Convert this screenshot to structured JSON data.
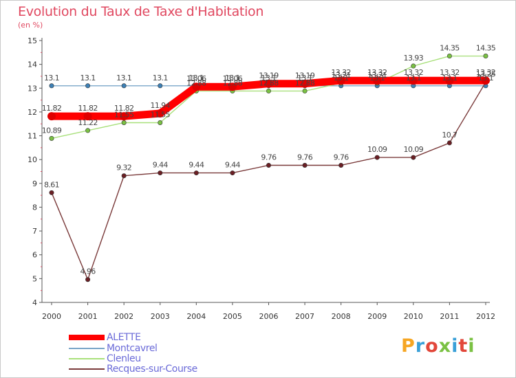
{
  "header": {
    "title": "Evolution du Taux de Taxe d'Habitation",
    "subtitle": "(en %)"
  },
  "logo": {
    "text": "Proxiti",
    "colors": [
      "#f6a623",
      "#3aa0d8",
      "#e2473a",
      "#7ac143",
      "#3aa0d8",
      "#e2473a",
      "#7ac143"
    ]
  },
  "chart_data": {
    "type": "line",
    "title": "Evolution du Taux de Taxe d'Habitation",
    "subtitle": "(en %)",
    "xlabel": "",
    "ylabel": "",
    "ylim": [
      4,
      15
    ],
    "yticks": [
      4,
      5,
      6,
      7,
      8,
      9,
      10,
      11,
      12,
      13,
      14,
      15
    ],
    "grid": false,
    "legend_position": "bottom-left",
    "categories": [
      "2000",
      "2001",
      "2002",
      "2003",
      "2004",
      "2005",
      "2006",
      "2007",
      "2008",
      "2009",
      "2010",
      "2011",
      "2012"
    ],
    "series": [
      {
        "name": "Montcavrel",
        "color": "#7aa6c8",
        "marker_color": "#3d80b5",
        "values": [
          13.1,
          13.1,
          13.1,
          13.1,
          13.1,
          13.1,
          13.1,
          13.1,
          13.1,
          13.1,
          13.1,
          13.1,
          13.1
        ],
        "labels": [
          "13.1",
          "13.1",
          "13.1",
          "13.1",
          "13.1",
          "13.1",
          "13.1",
          "13.1",
          "13.1",
          "13.1",
          "13.1",
          "13.1",
          "13.1"
        ]
      },
      {
        "name": "Clenleu",
        "color": "#a8e07a",
        "marker_color": "#7ac143",
        "values": [
          10.89,
          11.22,
          11.55,
          11.55,
          12.88,
          12.88,
          12.88,
          12.88,
          13.21,
          13.21,
          13.93,
          14.35,
          14.35
        ],
        "labels": [
          "10.89",
          "11.22",
          "11.55",
          "11.55",
          "12.88",
          "12.88",
          "12.88",
          "12.88",
          "13.21",
          "13.21",
          "13.93",
          "14.35",
          "14.35"
        ]
      },
      {
        "name": "Recques-sur-Course",
        "color": "#7a3a3a",
        "marker_color": "#6b1f24",
        "values": [
          8.61,
          4.96,
          9.32,
          9.44,
          9.44,
          9.44,
          9.76,
          9.76,
          9.76,
          10.09,
          10.09,
          10.7,
          13.25
        ],
        "labels": [
          "8.61",
          "4.96",
          "9.32",
          "9.44",
          "9.44",
          "9.44",
          "9.76",
          "9.76",
          "9.76",
          "10.09",
          "10.09",
          "10.7",
          "13.25"
        ]
      },
      {
        "name": "ALETTE",
        "color": "#ff0000",
        "marker_color": "#e00000",
        "values": [
          11.82,
          11.82,
          11.82,
          11.94,
          13.06,
          13.06,
          13.19,
          13.19,
          13.32,
          13.32,
          13.32,
          13.32,
          13.32
        ],
        "labels": [
          "11.82",
          "11.82",
          "11.82",
          "11.94",
          "13.06",
          "13.06",
          "13.19",
          "13.19",
          "13.32",
          "13.32",
          "13.32",
          "13.32",
          "13.32"
        ]
      }
    ],
    "legend_order": [
      "ALETTE",
      "Montcavrel",
      "Clenleu",
      "Recques-sur-Course"
    ]
  }
}
